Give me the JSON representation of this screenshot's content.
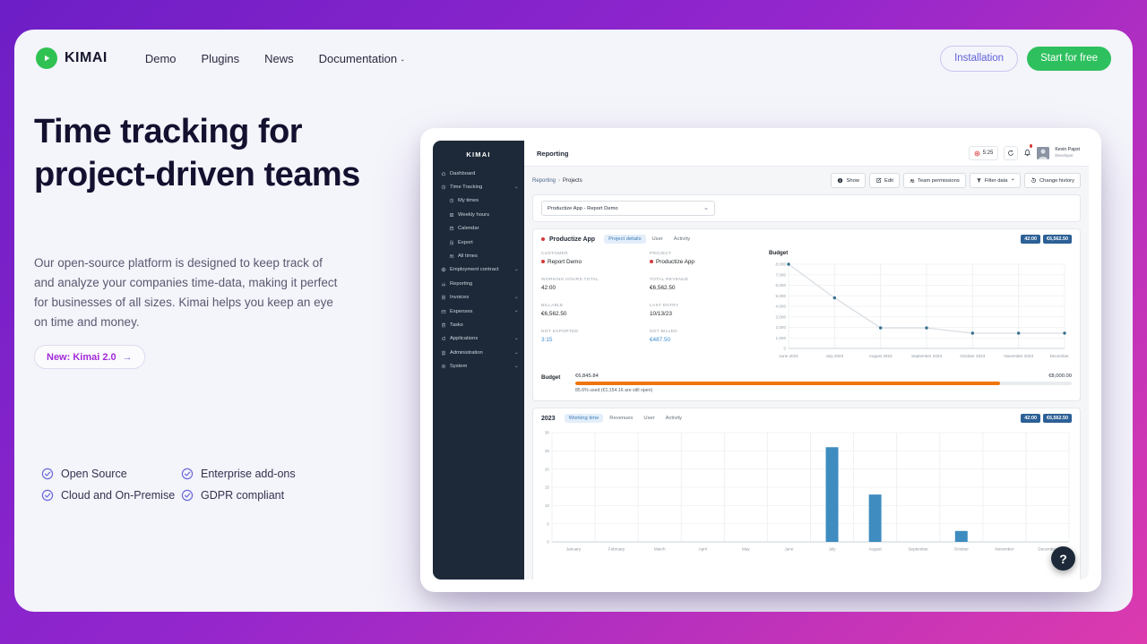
{
  "site_header": {
    "logo_text": "KIMAI",
    "nav_items": [
      {
        "label": "Demo"
      },
      {
        "label": "Plugins"
      },
      {
        "label": "News"
      },
      {
        "label": "Documentation",
        "chevron": true
      }
    ],
    "installation_button": "Installation",
    "start_button": "Start for free"
  },
  "hero": {
    "title": "Time tracking for project-driven teams",
    "description": "Our open-source platform is designed to keep track of and analyze your companies time-data, making it perfect for businesses of all sizes. Kimai helps you keep an eye on time and money.",
    "cta_label": "New: Kimai 2.0",
    "cta_arrow": "→",
    "features": [
      "Open Source",
      "Enterprise add-ons",
      "Cloud and On-Premise",
      "GDPR compliant"
    ]
  },
  "app": {
    "sidebar": {
      "brand": "KIMAI",
      "items": [
        {
          "label": "Dashboard",
          "icon": "home-icon"
        },
        {
          "label": "Time Tracking",
          "icon": "clock-icon",
          "chevron": true
        },
        {
          "label": "My times",
          "icon": "clock-icon",
          "sub": true
        },
        {
          "label": "Weekly hours",
          "icon": "grid-icon",
          "sub": true
        },
        {
          "label": "Calendar",
          "icon": "calendar-icon",
          "sub": true
        },
        {
          "label": "Export",
          "icon": "export-icon",
          "sub": true
        },
        {
          "label": "All times",
          "icon": "team-icon",
          "sub": true
        },
        {
          "label": "Employment contract",
          "icon": "globe-icon",
          "chevron": true
        },
        {
          "label": "Reporting",
          "icon": "chart-icon"
        },
        {
          "label": "Invoices",
          "icon": "invoice-icon",
          "chevron": true
        },
        {
          "label": "Expenses",
          "icon": "expense-icon",
          "chevron": true
        },
        {
          "label": "Tasks",
          "icon": "tasks-icon"
        },
        {
          "label": "Applications",
          "icon": "megaphone-icon",
          "chevron": true
        },
        {
          "label": "Administration",
          "icon": "building-icon",
          "chevron": true
        },
        {
          "label": "System",
          "icon": "gear-icon",
          "chevron": true
        }
      ]
    },
    "header": {
      "title": "Reporting",
      "timer": "5:25",
      "user_name": "Kevin Papst",
      "user_role": "Developer"
    },
    "toolbar": {
      "breadcrumb": [
        "Reporting",
        "Projects"
      ],
      "buttons": [
        {
          "label": "Show",
          "icon": "info-icon"
        },
        {
          "label": "Edit",
          "icon": "edit-icon"
        },
        {
          "label": "Team permissions",
          "icon": "team-icon"
        },
        {
          "label": "Filter data",
          "icon": "filter-icon",
          "chevron": true
        },
        {
          "label": "Change history",
          "icon": "history-icon"
        }
      ]
    },
    "project_selector": {
      "value": "Productize App - Report Demo"
    },
    "project_card": {
      "title": "Productize App",
      "tabs": [
        {
          "label": "Project details",
          "active": true
        },
        {
          "label": "User"
        },
        {
          "label": "Activity"
        }
      ],
      "badges": [
        "42:00",
        "€6,562.50"
      ],
      "stats": [
        {
          "label": "CUSTOMER",
          "value": "Report Demo",
          "dot": true
        },
        {
          "label": "PROJECT",
          "value": "Productize App",
          "dot": true
        },
        {
          "label": "WORKING HOURS TOTAL",
          "value": "42:00"
        },
        {
          "label": "TOTAL REVENUE",
          "value": "€6,562.50"
        },
        {
          "label": "BILLABLE",
          "value": "€6,562.50"
        },
        {
          "label": "LAST ENTRY",
          "value": "10/13/23"
        },
        {
          "label": "NOT EXPORTED",
          "value": "3:15",
          "link": true
        },
        {
          "label": "NOT BILLED",
          "value": "€487.50",
          "link": true
        }
      ],
      "budget_bar": {
        "label": "Budget",
        "spent": "€6,845.84",
        "total": "€8,000.00",
        "percent_used": 85.6,
        "note": "85.6% used (€1,154.16 are still open)"
      }
    },
    "year_card": {
      "title": "2023",
      "tabs": [
        {
          "label": "Working time",
          "active": true
        },
        {
          "label": "Revenues"
        },
        {
          "label": "User"
        },
        {
          "label": "Activity"
        }
      ],
      "badges": [
        "42:00",
        "€6,562.50"
      ]
    }
  },
  "help_button": "?",
  "chart_data": [
    {
      "type": "line",
      "title": "Budget",
      "categories": [
        "June 2023",
        "July 2023",
        "August 2023",
        "September 2023",
        "October 2023",
        "November 2023",
        "December 2023"
      ],
      "values": [
        8000,
        4800,
        1950,
        1950,
        1450,
        1450,
        1450
      ],
      "ylim": [
        0,
        8000
      ],
      "ytick_step": 1000,
      "grid": true,
      "line_color": "#d9dee3",
      "point_color": "#38708e"
    },
    {
      "type": "bar",
      "title": "2023 Working time",
      "categories": [
        "January",
        "February",
        "March",
        "April",
        "May",
        "June",
        "July",
        "August",
        "September",
        "October",
        "November",
        "December"
      ],
      "values": [
        0,
        0,
        0,
        0,
        0,
        0,
        26,
        13,
        0,
        3,
        0,
        0
      ],
      "ylim": [
        0,
        30
      ],
      "ytick_step": 5,
      "grid": true,
      "bar_color": "#3e8cc0"
    }
  ]
}
